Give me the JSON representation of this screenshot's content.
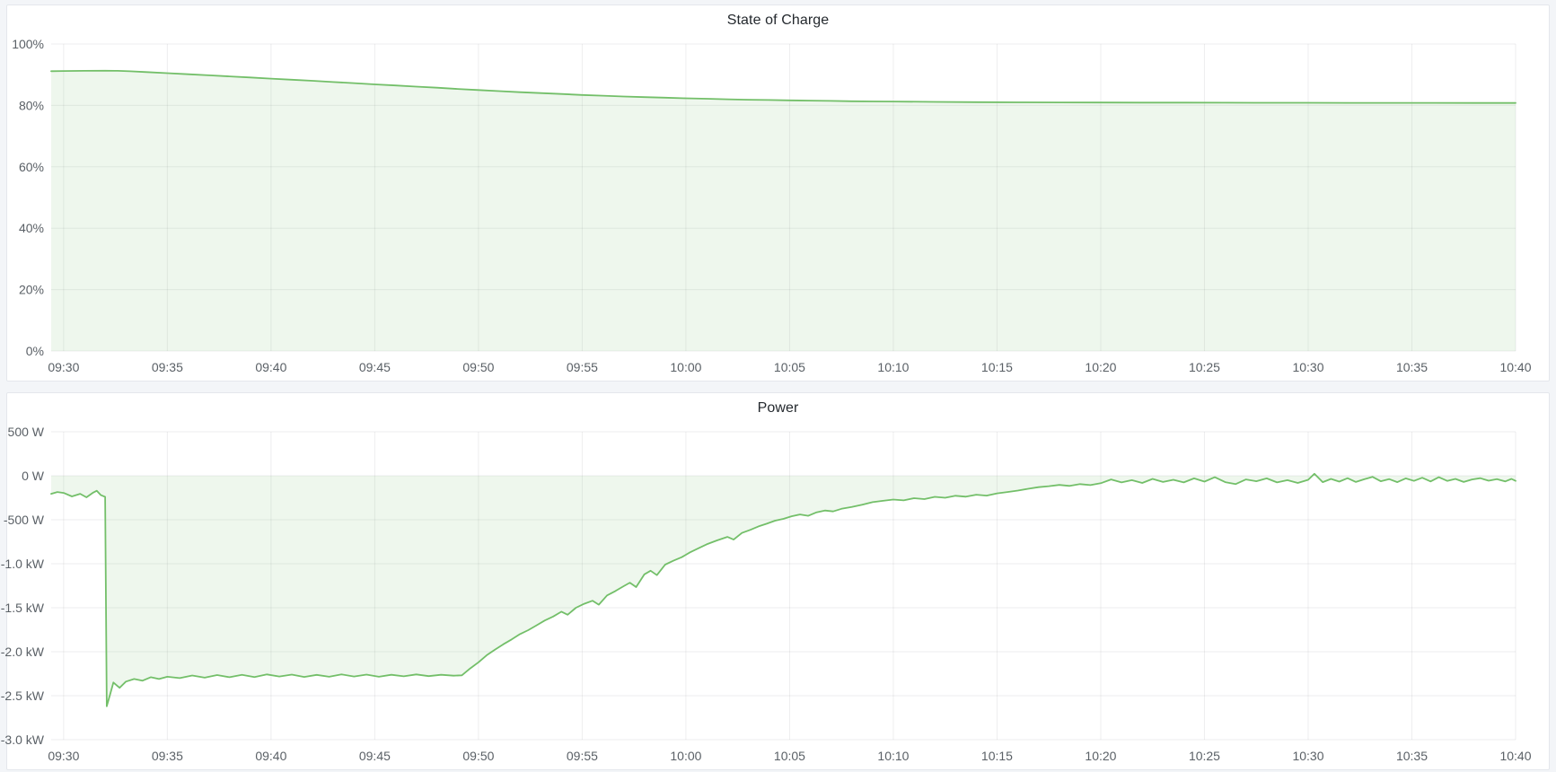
{
  "page": {
    "background_color": "#f3f5f8",
    "panel_background": "#ffffff",
    "panel_border_color": "#e4e7ec"
  },
  "panels": [
    {
      "title": "State of Charge"
    },
    {
      "title": "Power"
    }
  ],
  "chart_data": [
    {
      "type": "area",
      "title": "State of Charge",
      "unit": "%",
      "xlabel": "",
      "ylabel": "",
      "legend": "none",
      "grid": true,
      "line_color": "#73bf69",
      "fill_color": "rgba(115,191,105,0.12)",
      "grid_color": "rgba(36,41,46,0.08)",
      "axis_text_color": "#5a6066",
      "xlim_minutes_after_0930": [
        -0.6,
        70
      ],
      "ylim": [
        0,
        100
      ],
      "baseline": 0,
      "x_ticks": [
        {
          "t": 0,
          "label": "09:30"
        },
        {
          "t": 5,
          "label": "09:35"
        },
        {
          "t": 10,
          "label": "09:40"
        },
        {
          "t": 15,
          "label": "09:45"
        },
        {
          "t": 20,
          "label": "09:50"
        },
        {
          "t": 25,
          "label": "09:55"
        },
        {
          "t": 30,
          "label": "10:00"
        },
        {
          "t": 35,
          "label": "10:05"
        },
        {
          "t": 40,
          "label": "10:10"
        },
        {
          "t": 45,
          "label": "10:15"
        },
        {
          "t": 50,
          "label": "10:20"
        },
        {
          "t": 55,
          "label": "10:25"
        },
        {
          "t": 60,
          "label": "10:30"
        },
        {
          "t": 65,
          "label": "10:35"
        },
        {
          "t": 70,
          "label": "10:40"
        }
      ],
      "y_ticks": [
        {
          "v": 100,
          "label": "100%"
        },
        {
          "v": 80,
          "label": "80%"
        },
        {
          "v": 60,
          "label": "60%"
        },
        {
          "v": 40,
          "label": "40%"
        },
        {
          "v": 20,
          "label": "20%"
        },
        {
          "v": 0,
          "label": "0%"
        }
      ],
      "points": [
        [
          -0.6,
          91.15
        ],
        [
          0,
          91.2
        ],
        [
          1,
          91.25
        ],
        [
          2,
          91.3
        ],
        [
          2.6,
          91.25
        ],
        [
          3.2,
          91.1
        ],
        [
          4,
          90.85
        ],
        [
          5,
          90.5
        ],
        [
          6,
          90.15
        ],
        [
          7,
          89.8
        ],
        [
          8,
          89.45
        ],
        [
          9,
          89.1
        ],
        [
          10,
          88.7
        ],
        [
          11,
          88.35
        ],
        [
          12,
          88.0
        ],
        [
          13,
          87.6
        ],
        [
          14,
          87.25
        ],
        [
          15,
          86.85
        ],
        [
          16,
          86.5
        ],
        [
          17,
          86.1
        ],
        [
          18,
          85.75
        ],
        [
          19,
          85.35
        ],
        [
          20,
          85.0
        ],
        [
          21,
          84.65
        ],
        [
          22,
          84.3
        ],
        [
          23,
          84.0
        ],
        [
          24,
          83.7
        ],
        [
          25,
          83.4
        ],
        [
          26,
          83.15
        ],
        [
          27,
          82.9
        ],
        [
          28,
          82.7
        ],
        [
          29,
          82.5
        ],
        [
          30,
          82.3
        ],
        [
          31,
          82.15
        ],
        [
          32,
          82.0
        ],
        [
          33,
          81.85
        ],
        [
          34,
          81.75
        ],
        [
          35,
          81.65
        ],
        [
          36,
          81.55
        ],
        [
          37,
          81.45
        ],
        [
          38,
          81.35
        ],
        [
          39,
          81.3
        ],
        [
          40,
          81.25
        ],
        [
          42,
          81.15
        ],
        [
          44,
          81.05
        ],
        [
          46,
          81.0
        ],
        [
          48,
          80.97
        ],
        [
          50,
          80.95
        ],
        [
          52,
          80.92
        ],
        [
          54,
          80.9
        ],
        [
          56,
          80.88
        ],
        [
          58,
          80.86
        ],
        [
          60,
          80.85
        ],
        [
          62,
          80.83
        ],
        [
          64,
          80.82
        ],
        [
          66,
          80.81
        ],
        [
          68,
          80.8
        ],
        [
          70,
          80.8
        ]
      ]
    },
    {
      "type": "area",
      "title": "Power",
      "unit": "W",
      "xlabel": "",
      "ylabel": "",
      "legend": "none",
      "grid": true,
      "line_color": "#73bf69",
      "fill_color": "rgba(115,191,105,0.12)",
      "grid_color": "rgba(36,41,46,0.08)",
      "axis_text_color": "#5a6066",
      "xlim_minutes_after_0930": [
        -0.6,
        70
      ],
      "ylim": [
        -3000,
        500
      ],
      "baseline": 0,
      "x_ticks": [
        {
          "t": 0,
          "label": "09:30"
        },
        {
          "t": 5,
          "label": "09:35"
        },
        {
          "t": 10,
          "label": "09:40"
        },
        {
          "t": 15,
          "label": "09:45"
        },
        {
          "t": 20,
          "label": "09:50"
        },
        {
          "t": 25,
          "label": "09:55"
        },
        {
          "t": 30,
          "label": "10:00"
        },
        {
          "t": 35,
          "label": "10:05"
        },
        {
          "t": 40,
          "label": "10:10"
        },
        {
          "t": 45,
          "label": "10:15"
        },
        {
          "t": 50,
          "label": "10:20"
        },
        {
          "t": 55,
          "label": "10:25"
        },
        {
          "t": 60,
          "label": "10:30"
        },
        {
          "t": 65,
          "label": "10:35"
        },
        {
          "t": 70,
          "label": "10:40"
        }
      ],
      "y_ticks": [
        {
          "v": 500,
          "label": "500 W"
        },
        {
          "v": 0,
          "label": "0 W"
        },
        {
          "v": -500,
          "label": "-500 W"
        },
        {
          "v": -1000,
          "label": "-1.0 kW"
        },
        {
          "v": -1500,
          "label": "-1.5 kW"
        },
        {
          "v": -2000,
          "label": "-2.0 kW"
        },
        {
          "v": -2500,
          "label": "-2.5 kW"
        },
        {
          "v": -3000,
          "label": "-3.0 kW"
        }
      ],
      "points": [
        [
          -0.6,
          -205
        ],
        [
          -0.3,
          -185
        ],
        [
          0,
          -195
        ],
        [
          0.4,
          -235
        ],
        [
          0.8,
          -205
        ],
        [
          1.1,
          -245
        ],
        [
          1.4,
          -195
        ],
        [
          1.6,
          -170
        ],
        [
          1.8,
          -220
        ],
        [
          2.0,
          -240
        ],
        [
          2.08,
          -2620
        ],
        [
          2.25,
          -2480
        ],
        [
          2.4,
          -2350
        ],
        [
          2.7,
          -2410
        ],
        [
          3.0,
          -2340
        ],
        [
          3.4,
          -2310
        ],
        [
          3.8,
          -2330
        ],
        [
          4.2,
          -2290
        ],
        [
          4.6,
          -2310
        ],
        [
          5.0,
          -2285
        ],
        [
          5.6,
          -2300
        ],
        [
          6.2,
          -2270
        ],
        [
          6.8,
          -2295
        ],
        [
          7.4,
          -2265
        ],
        [
          8.0,
          -2290
        ],
        [
          8.6,
          -2262
        ],
        [
          9.2,
          -2288
        ],
        [
          9.8,
          -2258
        ],
        [
          10.4,
          -2282
        ],
        [
          11.0,
          -2260
        ],
        [
          11.6,
          -2287
        ],
        [
          12.2,
          -2263
        ],
        [
          12.8,
          -2285
        ],
        [
          13.4,
          -2258
        ],
        [
          14.0,
          -2282
        ],
        [
          14.6,
          -2260
        ],
        [
          15.2,
          -2285
        ],
        [
          15.8,
          -2262
        ],
        [
          16.4,
          -2280
        ],
        [
          17.0,
          -2258
        ],
        [
          17.6,
          -2278
        ],
        [
          18.2,
          -2262
        ],
        [
          18.8,
          -2272
        ],
        [
          19.2,
          -2268
        ],
        [
          19.6,
          -2190
        ],
        [
          20.0,
          -2120
        ],
        [
          20.4,
          -2040
        ],
        [
          20.8,
          -1975
        ],
        [
          21.2,
          -1915
        ],
        [
          21.6,
          -1860
        ],
        [
          22.0,
          -1800
        ],
        [
          22.4,
          -1755
        ],
        [
          22.8,
          -1700
        ],
        [
          23.2,
          -1645
        ],
        [
          23.6,
          -1600
        ],
        [
          24.0,
          -1545
        ],
        [
          24.3,
          -1580
        ],
        [
          24.7,
          -1500
        ],
        [
          25.1,
          -1455
        ],
        [
          25.5,
          -1420
        ],
        [
          25.8,
          -1465
        ],
        [
          26.2,
          -1360
        ],
        [
          26.6,
          -1310
        ],
        [
          27.0,
          -1255
        ],
        [
          27.3,
          -1215
        ],
        [
          27.6,
          -1265
        ],
        [
          28.0,
          -1120
        ],
        [
          28.3,
          -1080
        ],
        [
          28.6,
          -1130
        ],
        [
          29.0,
          -1010
        ],
        [
          29.4,
          -965
        ],
        [
          29.8,
          -925
        ],
        [
          30.2,
          -870
        ],
        [
          30.6,
          -825
        ],
        [
          31.0,
          -780
        ],
        [
          31.5,
          -735
        ],
        [
          32.0,
          -695
        ],
        [
          32.3,
          -725
        ],
        [
          32.7,
          -650
        ],
        [
          33.1,
          -615
        ],
        [
          33.5,
          -575
        ],
        [
          33.9,
          -545
        ],
        [
          34.3,
          -510
        ],
        [
          34.7,
          -490
        ],
        [
          35.1,
          -460
        ],
        [
          35.5,
          -440
        ],
        [
          35.9,
          -455
        ],
        [
          36.3,
          -415
        ],
        [
          36.7,
          -395
        ],
        [
          37.1,
          -405
        ],
        [
          37.5,
          -375
        ],
        [
          38.0,
          -355
        ],
        [
          38.5,
          -330
        ],
        [
          39.0,
          -300
        ],
        [
          39.5,
          -285
        ],
        [
          40.0,
          -270
        ],
        [
          40.5,
          -280
        ],
        [
          41.0,
          -255
        ],
        [
          41.5,
          -265
        ],
        [
          42.0,
          -240
        ],
        [
          42.5,
          -250
        ],
        [
          43.0,
          -228
        ],
        [
          43.5,
          -238
        ],
        [
          44.0,
          -215
        ],
        [
          44.5,
          -225
        ],
        [
          45.0,
          -200
        ],
        [
          45.5,
          -185
        ],
        [
          46.0,
          -168
        ],
        [
          46.5,
          -148
        ],
        [
          47.0,
          -130
        ],
        [
          47.5,
          -118
        ],
        [
          48.0,
          -104
        ],
        [
          48.5,
          -115
        ],
        [
          49.0,
          -95
        ],
        [
          49.5,
          -106
        ],
        [
          50.0,
          -85
        ],
        [
          50.5,
          -42
        ],
        [
          51.0,
          -76
        ],
        [
          51.5,
          -50
        ],
        [
          52.0,
          -82
        ],
        [
          52.5,
          -36
        ],
        [
          53.0,
          -70
        ],
        [
          53.5,
          -46
        ],
        [
          54.0,
          -76
        ],
        [
          54.5,
          -30
        ],
        [
          55.0,
          -66
        ],
        [
          55.5,
          -16
        ],
        [
          56.0,
          -72
        ],
        [
          56.5,
          -95
        ],
        [
          57.0,
          -42
        ],
        [
          57.5,
          -62
        ],
        [
          58.0,
          -30
        ],
        [
          58.5,
          -76
        ],
        [
          59.0,
          -50
        ],
        [
          59.5,
          -82
        ],
        [
          60.0,
          -46
        ],
        [
          60.3,
          22
        ],
        [
          60.7,
          -72
        ],
        [
          61.1,
          -36
        ],
        [
          61.5,
          -66
        ],
        [
          61.9,
          -28
        ],
        [
          62.3,
          -70
        ],
        [
          62.7,
          -40
        ],
        [
          63.1,
          -12
        ],
        [
          63.5,
          -62
        ],
        [
          63.9,
          -38
        ],
        [
          64.3,
          -72
        ],
        [
          64.7,
          -30
        ],
        [
          65.1,
          -58
        ],
        [
          65.5,
          -22
        ],
        [
          65.9,
          -64
        ],
        [
          66.3,
          -16
        ],
        [
          66.7,
          -58
        ],
        [
          67.1,
          -36
        ],
        [
          67.5,
          -70
        ],
        [
          67.9,
          -42
        ],
        [
          68.3,
          -28
        ],
        [
          68.7,
          -56
        ],
        [
          69.1,
          -38
        ],
        [
          69.5,
          -64
        ],
        [
          69.8,
          -36
        ],
        [
          70,
          -58
        ]
      ]
    }
  ]
}
